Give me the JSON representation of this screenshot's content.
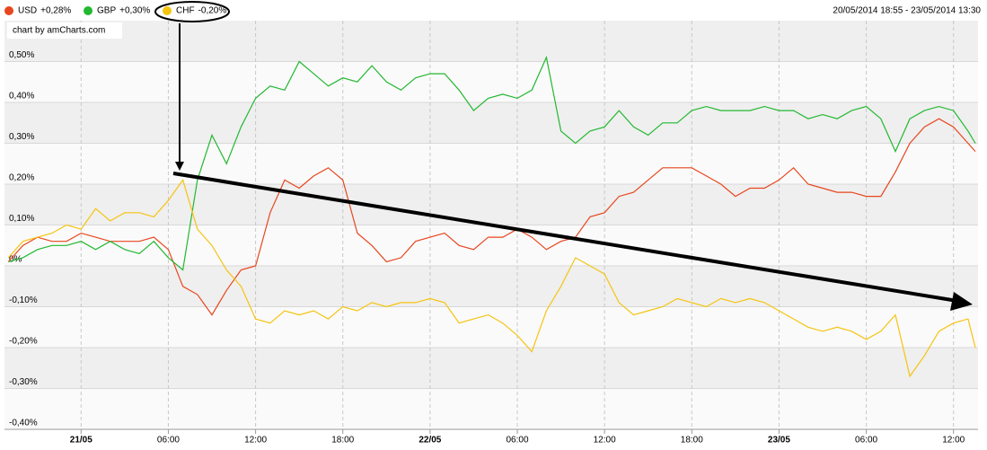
{
  "chart_data": {
    "type": "line",
    "range_label": "20/05/2014 18:55 - 23/05/2014 13:30",
    "credit": "chart by amCharts.com",
    "x": [
      "2014-05-20 19:00",
      "2014-05-20 20:00",
      "2014-05-20 21:00",
      "2014-05-20 22:00",
      "2014-05-20 23:00",
      "2014-05-21 00:00",
      "2014-05-21 01:00",
      "2014-05-21 02:00",
      "2014-05-21 03:00",
      "2014-05-21 04:00",
      "2014-05-21 05:00",
      "2014-05-21 06:00",
      "2014-05-21 07:00",
      "2014-05-21 08:00",
      "2014-05-21 09:00",
      "2014-05-21 10:00",
      "2014-05-21 11:00",
      "2014-05-21 12:00",
      "2014-05-21 13:00",
      "2014-05-21 14:00",
      "2014-05-21 15:00",
      "2014-05-21 16:00",
      "2014-05-21 17:00",
      "2014-05-21 18:00",
      "2014-05-21 19:00",
      "2014-05-21 20:00",
      "2014-05-21 21:00",
      "2014-05-21 22:00",
      "2014-05-21 23:00",
      "2014-05-22 00:00",
      "2014-05-22 01:00",
      "2014-05-22 02:00",
      "2014-05-22 03:00",
      "2014-05-22 04:00",
      "2014-05-22 05:00",
      "2014-05-22 06:00",
      "2014-05-22 07:00",
      "2014-05-22 08:00",
      "2014-05-22 09:00",
      "2014-05-22 10:00",
      "2014-05-22 11:00",
      "2014-05-22 12:00",
      "2014-05-22 13:00",
      "2014-05-22 14:00",
      "2014-05-22 15:00",
      "2014-05-22 16:00",
      "2014-05-22 17:00",
      "2014-05-22 18:00",
      "2014-05-22 19:00",
      "2014-05-22 20:00",
      "2014-05-22 21:00",
      "2014-05-22 22:00",
      "2014-05-22 23:00",
      "2014-05-23 00:00",
      "2014-05-23 01:00",
      "2014-05-23 02:00",
      "2014-05-23 03:00",
      "2014-05-23 04:00",
      "2014-05-23 05:00",
      "2014-05-23 06:00",
      "2014-05-23 07:00",
      "2014-05-23 08:00",
      "2014-05-23 09:00",
      "2014-05-23 10:00",
      "2014-05-23 11:00",
      "2014-05-23 12:00",
      "2014-05-23 13:00",
      "2014-05-23 13:30"
    ],
    "series": [
      {
        "name": "USD",
        "last_label": "+0,28%",
        "color": "#e8461e",
        "values": [
          0.01,
          0.05,
          0.07,
          0.06,
          0.06,
          0.08,
          0.07,
          0.06,
          0.06,
          0.06,
          0.07,
          0.04,
          -0.05,
          -0.07,
          -0.12,
          -0.06,
          -0.01,
          0.0,
          0.13,
          0.21,
          0.19,
          0.22,
          0.24,
          0.21,
          0.08,
          0.05,
          0.01,
          0.02,
          0.06,
          0.07,
          0.08,
          0.05,
          0.04,
          0.07,
          0.07,
          0.09,
          0.07,
          0.04,
          0.06,
          0.07,
          0.12,
          0.13,
          0.17,
          0.18,
          0.21,
          0.24,
          0.24,
          0.24,
          0.22,
          0.2,
          0.17,
          0.19,
          0.19,
          0.21,
          0.24,
          0.2,
          0.19,
          0.18,
          0.18,
          0.17,
          0.17,
          0.23,
          0.3,
          0.34,
          0.36,
          0.34,
          0.3,
          0.28
        ]
      },
      {
        "name": "GBP",
        "last_label": "+0,30%",
        "color": "#22b830",
        "values": [
          0.01,
          0.02,
          0.04,
          0.05,
          0.05,
          0.06,
          0.04,
          0.06,
          0.04,
          0.03,
          0.06,
          0.02,
          -0.01,
          0.21,
          0.32,
          0.25,
          0.34,
          0.41,
          0.44,
          0.43,
          0.5,
          0.47,
          0.44,
          0.46,
          0.45,
          0.49,
          0.45,
          0.43,
          0.46,
          0.47,
          0.47,
          0.43,
          0.38,
          0.41,
          0.42,
          0.41,
          0.43,
          0.51,
          0.33,
          0.3,
          0.33,
          0.34,
          0.38,
          0.34,
          0.32,
          0.35,
          0.35,
          0.38,
          0.39,
          0.38,
          0.38,
          0.38,
          0.39,
          0.38,
          0.38,
          0.36,
          0.37,
          0.36,
          0.38,
          0.39,
          0.36,
          0.28,
          0.36,
          0.38,
          0.39,
          0.38,
          0.33,
          0.3
        ]
      },
      {
        "name": "CHF",
        "last_label": "-0,20%",
        "color": "#f5c40f",
        "values": [
          0.02,
          0.06,
          0.07,
          0.08,
          0.1,
          0.09,
          0.14,
          0.11,
          0.13,
          0.13,
          0.12,
          0.16,
          0.21,
          0.09,
          0.05,
          -0.01,
          -0.05,
          -0.13,
          -0.14,
          -0.11,
          -0.12,
          -0.11,
          -0.13,
          -0.1,
          -0.11,
          -0.09,
          -0.1,
          -0.09,
          -0.09,
          -0.08,
          -0.09,
          -0.14,
          -0.13,
          -0.12,
          -0.14,
          -0.17,
          -0.21,
          -0.11,
          -0.05,
          0.02,
          0.0,
          -0.02,
          -0.09,
          -0.12,
          -0.11,
          -0.1,
          -0.08,
          -0.09,
          -0.1,
          -0.08,
          -0.09,
          -0.08,
          -0.09,
          -0.11,
          -0.13,
          -0.15,
          -0.16,
          -0.15,
          -0.16,
          -0.18,
          -0.16,
          -0.12,
          -0.27,
          -0.22,
          -0.16,
          -0.14,
          -0.13,
          -0.2
        ]
      }
    ],
    "xlim": [
      "2014-05-20 18:55",
      "2014-05-23 13:30"
    ],
    "xticks": [
      {
        "value": "2014-05-21 00:00",
        "label": "21/05"
      },
      {
        "value": "2014-05-21 06:00",
        "label": "06:00"
      },
      {
        "value": "2014-05-21 12:00",
        "label": "12:00"
      },
      {
        "value": "2014-05-21 18:00",
        "label": "18:00"
      },
      {
        "value": "2014-05-22 00:00",
        "label": "22/05"
      },
      {
        "value": "2014-05-22 06:00",
        "label": "06:00"
      },
      {
        "value": "2014-05-22 12:00",
        "label": "12:00"
      },
      {
        "value": "2014-05-22 18:00",
        "label": "18:00"
      },
      {
        "value": "2014-05-23 00:00",
        "label": "23/05"
      },
      {
        "value": "2014-05-23 06:00",
        "label": "06:00"
      },
      {
        "value": "2014-05-23 12:00",
        "label": "12:00"
      }
    ],
    "ylim": [
      -0.4,
      0.6
    ],
    "yticks": [
      {
        "value": 0.5,
        "label": "0,50%"
      },
      {
        "value": 0.4,
        "label": "0,40%"
      },
      {
        "value": 0.3,
        "label": "0,30%"
      },
      {
        "value": 0.2,
        "label": "0,20%"
      },
      {
        "value": 0.1,
        "label": "0,10%"
      },
      {
        "value": 0,
        "label": "0%"
      },
      {
        "value": -0.1,
        "label": "-0,10%"
      },
      {
        "value": -0.2,
        "label": "-0,20%"
      },
      {
        "value": -0.3,
        "label": "-0,30%"
      },
      {
        "value": -0.4,
        "label": "-0,40%"
      }
    ],
    "grid": true
  }
}
